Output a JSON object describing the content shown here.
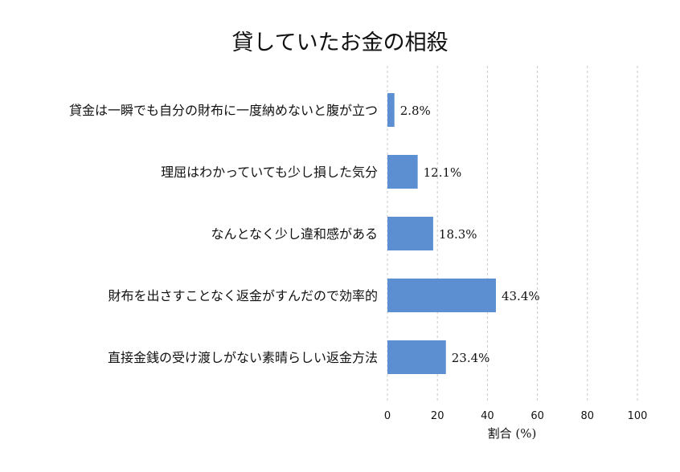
{
  "chart_data": {
    "type": "bar",
    "orientation": "horizontal",
    "title": "貸していたお金の相殺",
    "xlabel": "割合 (%)",
    "ylabel": "",
    "xlim": [
      0,
      100
    ],
    "xticks": [
      "0",
      "20",
      "40",
      "60",
      "80",
      "100"
    ],
    "grid": "vertical dashed",
    "bar_color": "#5b8fd1",
    "categories": [
      "貸金は一瞬でも自分の財布に一度納めないと腹が立つ",
      "理屈はわかっていても少し損した気分",
      "なんとなく少し違和感がある",
      "財布を出さすことなく返金がすんだので効率的",
      "直接金銭の受け渡しがない素晴らしい返金方法"
    ],
    "values": [
      2.8,
      12.1,
      18.3,
      43.4,
      23.4
    ],
    "data_labels": [
      "2.8%",
      "12.1%",
      "18.3%",
      "43.4%",
      "23.4%"
    ]
  }
}
